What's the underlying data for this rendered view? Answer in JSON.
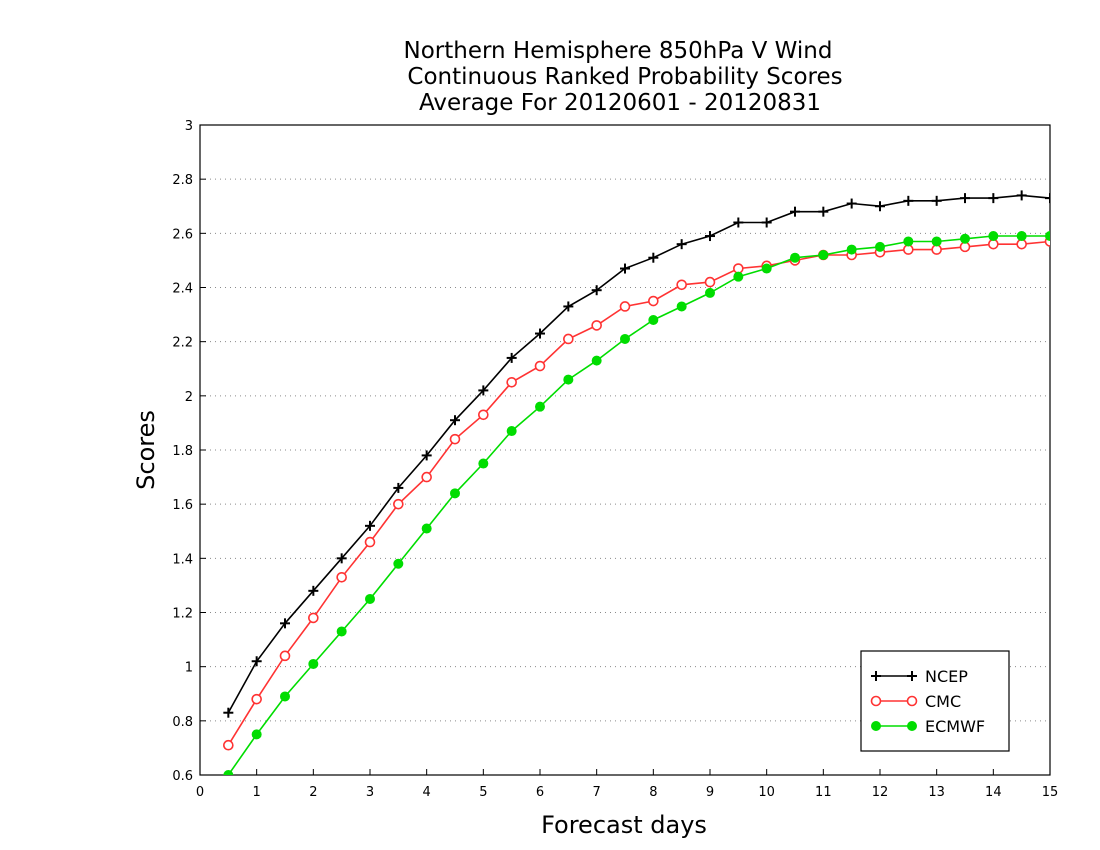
{
  "chart_data": {
    "type": "line",
    "title_lines": [
      "Northern Hemisphere 850hPa V Wind",
      "Continuous Ranked Probability Scores",
      "Average For 20120601 - 20120831"
    ],
    "xlabel": "Forecast days",
    "ylabel": "Scores",
    "xlim": [
      0,
      15
    ],
    "ylim": [
      0.6,
      3
    ],
    "x_ticks": [
      "0",
      "1",
      "2",
      "3",
      "4",
      "5",
      "6",
      "7",
      "8",
      "9",
      "10",
      "11",
      "12",
      "13",
      "14",
      "15"
    ],
    "y_ticks": [
      "0.6",
      "0.8",
      "1",
      "1.2",
      "1.4",
      "1.6",
      "1.8",
      "2",
      "2.2",
      "2.4",
      "2.6",
      "2.8",
      "3"
    ],
    "grid": "horizontal dotted",
    "legend_position": "bottom-right",
    "x": [
      0.5,
      1,
      1.5,
      2,
      2.5,
      3,
      3.5,
      4,
      4.5,
      5,
      5.5,
      6,
      6.5,
      7,
      7.5,
      8,
      8.5,
      9,
      9.5,
      10,
      10.5,
      11,
      11.5,
      12,
      12.5,
      13,
      13.5,
      14,
      14.5,
      15
    ],
    "series": [
      {
        "name": "NCEP",
        "color": "#000000",
        "marker": "plus",
        "values": [
          0.83,
          1.02,
          1.16,
          1.28,
          1.4,
          1.52,
          1.66,
          1.78,
          1.91,
          2.02,
          2.14,
          2.23,
          2.33,
          2.39,
          2.47,
          2.51,
          2.56,
          2.59,
          2.64,
          2.64,
          2.68,
          2.68,
          2.71,
          2.7,
          2.72,
          2.72,
          2.73,
          2.73,
          2.74,
          2.73
        ]
      },
      {
        "name": "CMC",
        "color": "#ff3333",
        "marker": "open-circle",
        "values": [
          0.71,
          0.88,
          1.04,
          1.18,
          1.33,
          1.46,
          1.6,
          1.7,
          1.84,
          1.93,
          2.05,
          2.11,
          2.21,
          2.26,
          2.33,
          2.35,
          2.41,
          2.42,
          2.47,
          2.48,
          2.5,
          2.52,
          2.52,
          2.53,
          2.54,
          2.54,
          2.55,
          2.56,
          2.56,
          2.57
        ]
      },
      {
        "name": "ECMWF",
        "color": "#00dd00",
        "marker": "filled-circle",
        "values": [
          0.6,
          0.75,
          0.89,
          1.01,
          1.13,
          1.25,
          1.38,
          1.51,
          1.64,
          1.75,
          1.87,
          1.96,
          2.06,
          2.13,
          2.21,
          2.28,
          2.33,
          2.38,
          2.44,
          2.47,
          2.51,
          2.52,
          2.54,
          2.55,
          2.57,
          2.57,
          2.58,
          2.59,
          2.59,
          2.59
        ]
      }
    ]
  }
}
